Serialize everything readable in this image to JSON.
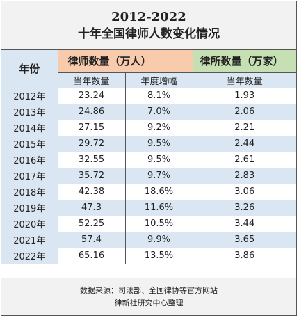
{
  "title": {
    "line1": "2012-2022",
    "line2": "十年全国律师人数变化情况"
  },
  "headers": {
    "year": "年份",
    "lawyers": "律师数量（万人）",
    "firms": "律所数量（万家）",
    "lawyers_current": "当年数量",
    "lawyers_growth": "年度增幅",
    "firms_current": "当年数量"
  },
  "colors": {
    "blue_band": "#dbe6f3",
    "lawyers_header": "#f8cbad",
    "firms_header": "#c6e0b4",
    "title_bg": "#f2f2f2"
  },
  "rows": [
    {
      "year": "2012年",
      "lawyers": "23.24",
      "growth": "8.1%",
      "firms": "1.93"
    },
    {
      "year": "2013年",
      "lawyers": "24.86",
      "growth": "7.0%",
      "firms": "2.06"
    },
    {
      "year": "2014年",
      "lawyers": "27.15",
      "growth": "9.2%",
      "firms": "2.21"
    },
    {
      "year": "2015年",
      "lawyers": "29.72",
      "growth": "9.5%",
      "firms": "2.44"
    },
    {
      "year": "2016年",
      "lawyers": "32.55",
      "growth": "9.5%",
      "firms": "2.61"
    },
    {
      "year": "2017年",
      "lawyers": "35.72",
      "growth": "9.7%",
      "firms": "2.83"
    },
    {
      "year": "2018年",
      "lawyers": "42.38",
      "growth": "18.6%",
      "firms": "3.06"
    },
    {
      "year": "2019年",
      "lawyers": "47.3",
      "growth": "11.6%",
      "firms": "3.26"
    },
    {
      "year": "2020年",
      "lawyers": "52.25",
      "growth": "10.5%",
      "firms": "3.44"
    },
    {
      "year": "2021年",
      "lawyers": "57.4",
      "growth": "9.9%",
      "firms": "3.65"
    },
    {
      "year": "2022年",
      "lawyers": "65.16",
      "growth": "13.5%",
      "firms": "3.86"
    }
  ],
  "footer": {
    "source": "数据来源：司法部、全国律协等官方网站",
    "credit": "律新社研究中心整理"
  }
}
